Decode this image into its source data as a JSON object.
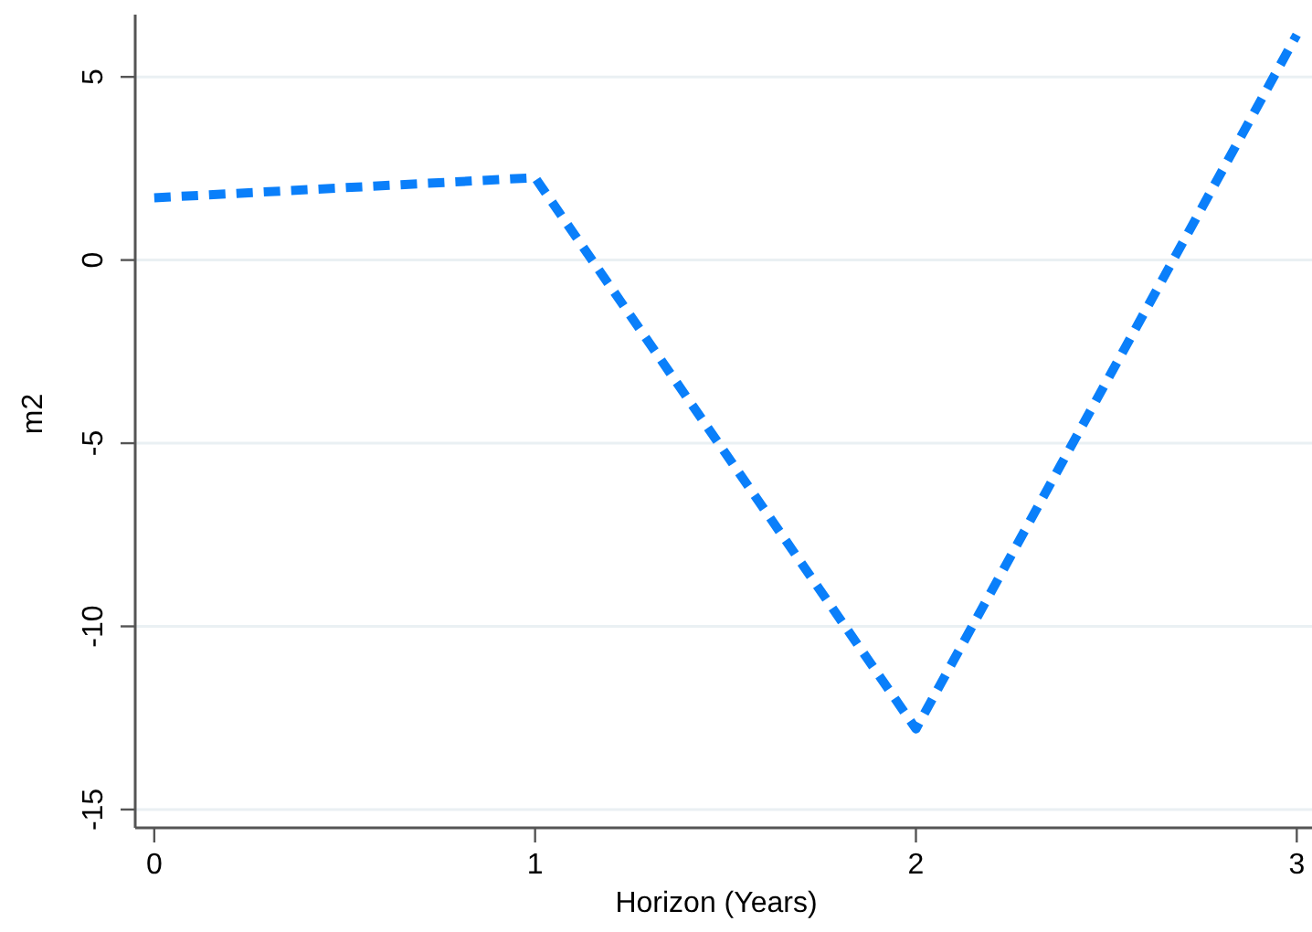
{
  "chart_data": {
    "type": "line",
    "xlabel": "Horizon (Years)",
    "ylabel": "m2",
    "x": [
      0,
      1,
      2,
      3
    ],
    "series": [
      {
        "color": "#0a7ffa",
        "values": [
          1.7,
          2.25,
          -12.8,
          6.15
        ]
      }
    ],
    "xlim": [
      -0.05,
      3.04
    ],
    "xticks": [
      0,
      1,
      2,
      3
    ],
    "ylim": [
      -15.5,
      6.7
    ],
    "yticks": [
      -15,
      -10,
      -5,
      0,
      5
    ],
    "grid": "y",
    "line_style": "dashed",
    "marker": "none"
  }
}
